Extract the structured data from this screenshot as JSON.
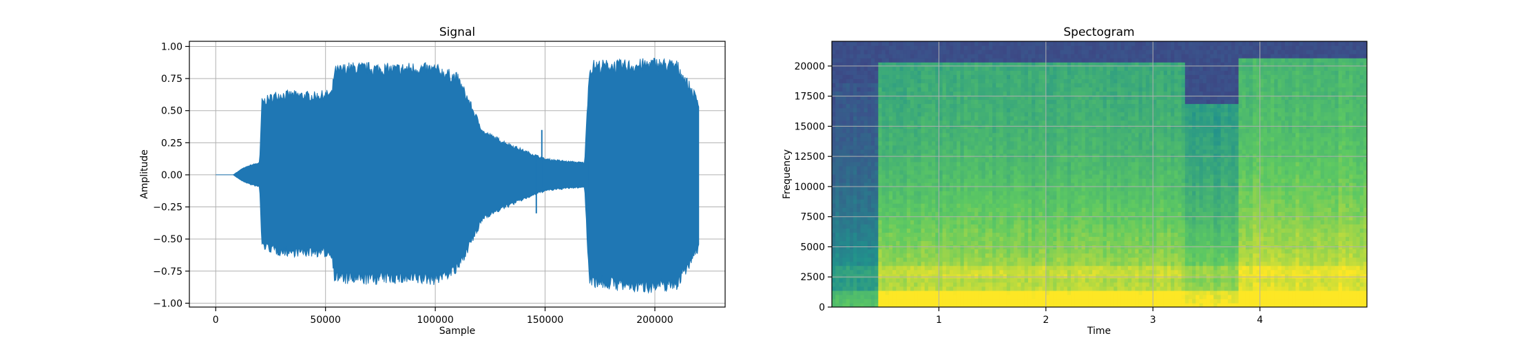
{
  "chart_data": [
    {
      "type": "line",
      "title": "Signal",
      "xlabel": "Sample",
      "ylabel": "Amplitude",
      "xlim": [
        -12000,
        232000
      ],
      "ylim": [
        -1.03,
        1.04
      ],
      "xticks": [
        0,
        50000,
        100000,
        150000,
        200000
      ],
      "xtick_labels": [
        "0",
        "50000",
        "100000",
        "150000",
        "200000"
      ],
      "yticks": [
        -1.0,
        -0.75,
        -0.5,
        -0.25,
        0.0,
        0.25,
        0.5,
        0.75,
        1.0
      ],
      "ytick_labels": [
        "−1.00",
        "−0.75",
        "−0.50",
        "−0.25",
        "0.00",
        "0.25",
        "0.50",
        "0.75",
        "1.00"
      ],
      "grid": true,
      "color": "#1f77b4",
      "series": [
        {
          "x": [
            0,
            8000,
            12000,
            16000,
            20000,
            21000,
            28000,
            35000,
            45000,
            53000,
            54000,
            60000,
            70000,
            80000,
            90000,
            100000,
            110000,
            115000,
            118000,
            122000,
            130000,
            140000,
            150000,
            160000,
            168000,
            170000,
            172000,
            180000,
            190000,
            200000,
            210000,
            220000
          ],
          "upper": [
            0.0,
            0.0,
            0.05,
            0.08,
            0.1,
            0.6,
            0.66,
            0.66,
            0.65,
            0.67,
            0.85,
            0.88,
            0.88,
            0.87,
            0.88,
            0.87,
            0.8,
            0.62,
            0.5,
            0.35,
            0.28,
            0.2,
            0.13,
            0.11,
            0.1,
            0.84,
            0.9,
            0.9,
            0.9,
            0.92,
            0.9,
            0.6
          ],
          "lower": [
            0.0,
            0.0,
            -0.05,
            -0.08,
            -0.1,
            -0.58,
            -0.63,
            -0.64,
            -0.64,
            -0.65,
            -0.84,
            -0.86,
            -0.86,
            -0.85,
            -0.86,
            -0.86,
            -0.78,
            -0.6,
            -0.5,
            -0.35,
            -0.28,
            -0.2,
            -0.13,
            -0.11,
            -0.1,
            -0.84,
            -0.88,
            -0.9,
            -0.92,
            -0.92,
            -0.9,
            -0.6
          ]
        }
      ]
    },
    {
      "type": "heatmap",
      "title": "Spectogram",
      "xlabel": "Time",
      "ylabel": "Frequency",
      "xlim": [
        0,
        5.0
      ],
      "ylim": [
        0,
        22050
      ],
      "xticks": [
        1,
        2,
        3,
        4
      ],
      "xtick_labels": [
        "1",
        "2",
        "3",
        "4"
      ],
      "yticks": [
        0,
        2500,
        5000,
        7500,
        10000,
        12500,
        15000,
        17500,
        20000
      ],
      "ytick_labels": [
        "0",
        "2500",
        "5000",
        "7500",
        "10000",
        "12500",
        "15000",
        "17500",
        "20000"
      ],
      "grid": true,
      "colormap": [
        "#440154",
        "#3b528b",
        "#21918c",
        "#5ec962",
        "#fde725"
      ],
      "time_segments": [
        {
          "start": 0.0,
          "end": 0.45,
          "level": 0.32,
          "top_freq": 18500
        },
        {
          "start": 0.45,
          "end": 3.3,
          "level": 0.66,
          "top_freq": 20200
        },
        {
          "start": 3.3,
          "end": 3.8,
          "level": 0.6,
          "top_freq": 16800
        },
        {
          "start": 3.8,
          "end": 5.0,
          "level": 0.72,
          "top_freq": 20500
        }
      ]
    }
  ]
}
